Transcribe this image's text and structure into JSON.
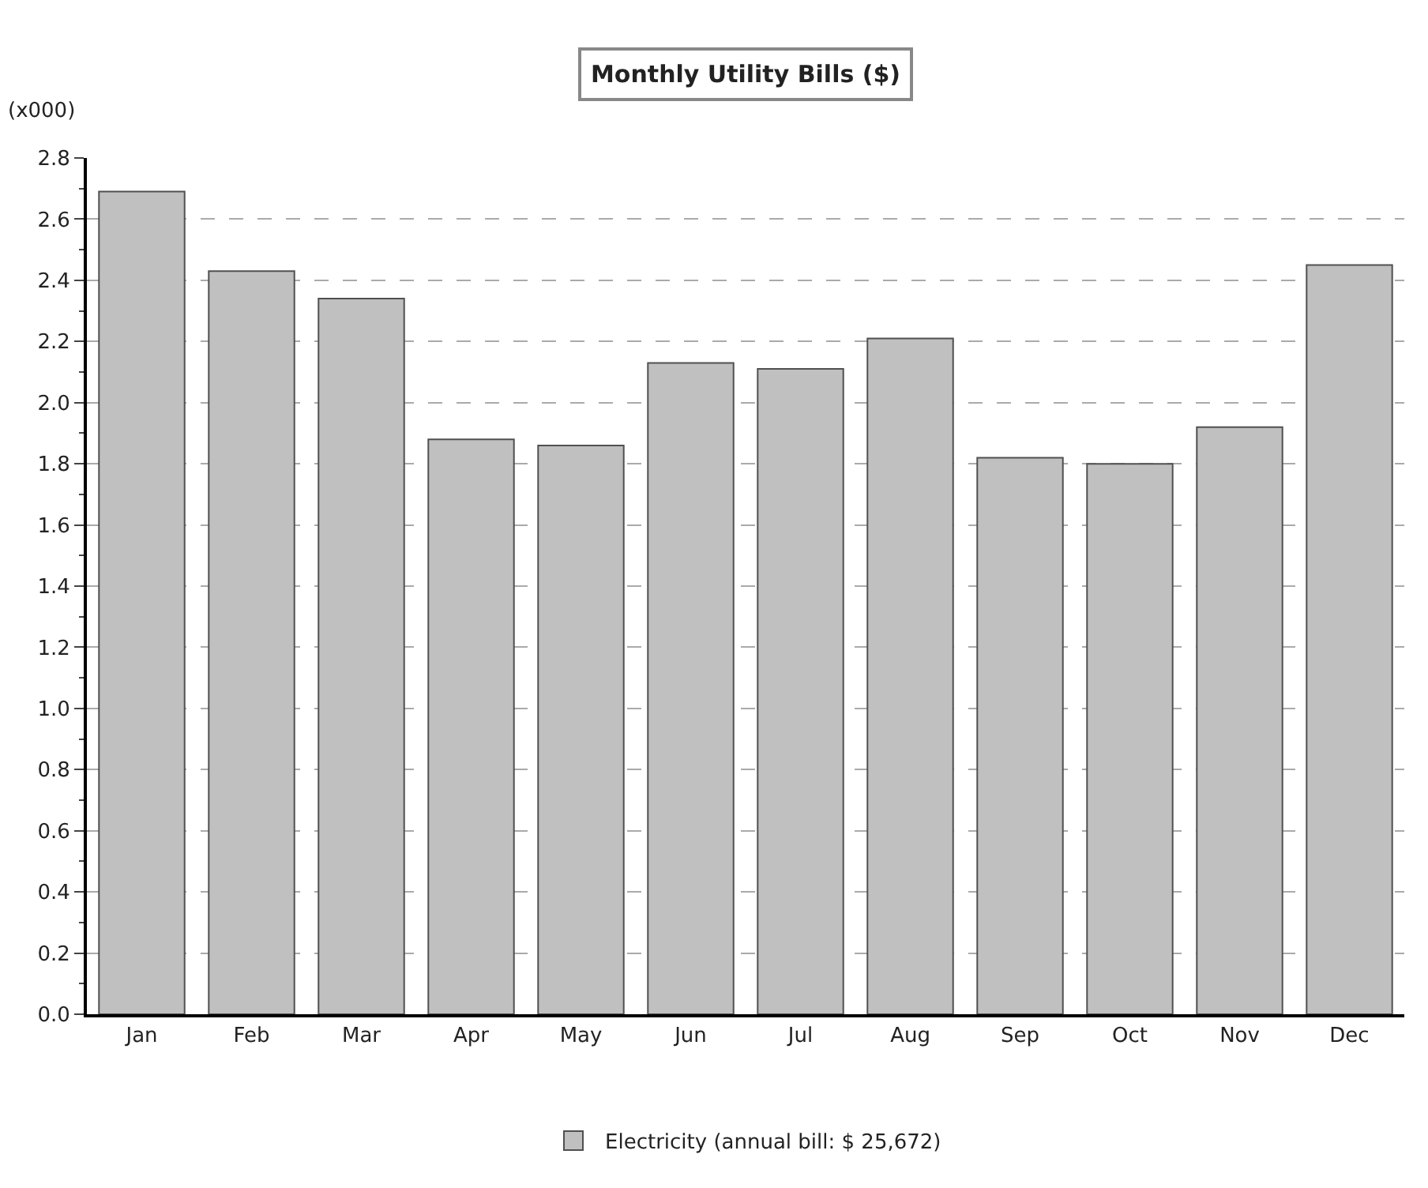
{
  "chart_data": {
    "type": "bar",
    "title": "Monthly Utility Bills ($)",
    "ylabel": "(x000)",
    "categories": [
      "Jan",
      "Feb",
      "Mar",
      "Apr",
      "May",
      "Jun",
      "Jul",
      "Aug",
      "Sep",
      "Oct",
      "Nov",
      "Dec"
    ],
    "series": [
      {
        "name": "Electricity (annual bill: $ 25,672)",
        "color": "#c0c0c0",
        "values": [
          2.69,
          2.43,
          2.34,
          1.88,
          1.86,
          2.13,
          2.11,
          2.21,
          1.82,
          1.8,
          1.92,
          2.45
        ]
      }
    ],
    "ylim": [
      0,
      2.8
    ],
    "yticks": [
      {
        "value": 0,
        "label": "0.0"
      },
      {
        "value": 0.2,
        "label": "0.2"
      },
      {
        "value": 0.4,
        "label": "0.4"
      },
      {
        "value": 0.6,
        "label": "0.6"
      },
      {
        "value": 0.8,
        "label": "0.8"
      },
      {
        "value": 1.0,
        "label": "1.0"
      },
      {
        "value": 1.2,
        "label": "1.2"
      },
      {
        "value": 1.4,
        "label": "1.4"
      },
      {
        "value": 1.6,
        "label": "1.6"
      },
      {
        "value": 1.8,
        "label": "1.8"
      },
      {
        "value": 2.0,
        "label": "2.0"
      },
      {
        "value": 2.2,
        "label": "2.2"
      },
      {
        "value": 2.4,
        "label": "2.4"
      },
      {
        "value": 2.6,
        "label": "2.6"
      },
      {
        "value": 2.8,
        "label": "2.8"
      }
    ],
    "grid": "y",
    "legend": "bottom"
  }
}
